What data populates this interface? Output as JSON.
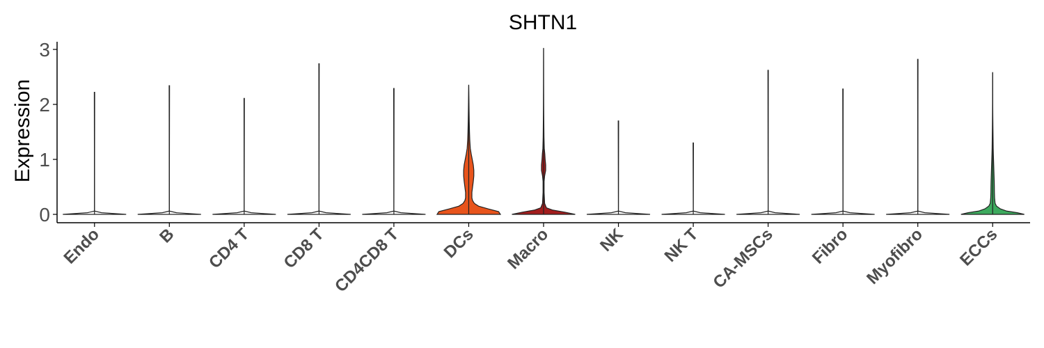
{
  "chart_data": {
    "type": "violin",
    "title": "SHTN1",
    "xlabel": "",
    "ylabel": "Expression",
    "ylim": [
      -0.15,
      3.15
    ],
    "yticks": [
      "0",
      "1",
      "2",
      "3"
    ],
    "categories": [
      "Endo",
      "B",
      "CD4 T",
      "CD8 T",
      "CD4CD8 T",
      "DCs",
      "Macro",
      "NK",
      "NK T",
      "CA-MSCs",
      "Fibro",
      "Myofibro",
      "ECCs"
    ],
    "max_values": [
      2.22,
      2.34,
      2.11,
      2.74,
      2.29,
      2.35,
      3.02,
      1.7,
      1.3,
      2.62,
      2.28,
      2.82,
      2.58
    ],
    "colors": [
      "#ffffff",
      "#ffffff",
      "#ffffff",
      "#ffffff",
      "#ffffff",
      "#e8541c",
      "#a31d1d",
      "#ffffff",
      "#ffffff",
      "#ffffff",
      "#ffffff",
      "#ffffff",
      "#3daa5e"
    ],
    "density_profiles": [
      {
        "y": [
          0,
          0.03,
          0.06
        ],
        "w": [
          0.9,
          0.2,
          0.0
        ]
      },
      {
        "y": [
          0,
          0.03,
          0.06
        ],
        "w": [
          0.9,
          0.2,
          0.0
        ]
      },
      {
        "y": [
          0,
          0.03,
          0.06
        ],
        "w": [
          0.9,
          0.2,
          0.0
        ]
      },
      {
        "y": [
          0,
          0.03,
          0.06
        ],
        "w": [
          0.9,
          0.2,
          0.0
        ]
      },
      {
        "y": [
          0,
          0.03,
          0.06
        ],
        "w": [
          0.9,
          0.2,
          0.0
        ]
      },
      {
        "y": [
          0,
          0.05,
          0.1,
          0.15,
          0.2,
          0.25,
          0.3,
          0.4,
          0.5,
          0.6,
          0.7,
          0.8,
          0.9,
          1.0,
          1.1,
          1.2,
          1.35,
          1.5,
          1.7,
          1.9,
          2.1,
          2.35
        ],
        "w": [
          0.9,
          0.85,
          0.55,
          0.28,
          0.16,
          0.11,
          0.09,
          0.09,
          0.11,
          0.13,
          0.145,
          0.145,
          0.13,
          0.1,
          0.07,
          0.045,
          0.03,
          0.022,
          0.015,
          0.01,
          0.006,
          0.0
        ]
      },
      {
        "y": [
          0,
          0.04,
          0.08,
          0.12,
          0.2,
          0.4,
          0.6,
          0.7,
          0.8,
          0.9,
          1.0,
          1.1,
          1.2,
          1.4,
          1.6,
          1.8,
          2.0,
          2.4,
          2.8,
          3.02
        ],
        "w": [
          0.9,
          0.6,
          0.25,
          0.08,
          0.03,
          0.015,
          0.015,
          0.03,
          0.06,
          0.06,
          0.045,
          0.035,
          0.02,
          0.012,
          0.009,
          0.006,
          0.004,
          0.002,
          0.001,
          0.0
        ]
      },
      {
        "y": [
          0,
          0.03,
          0.06
        ],
        "w": [
          0.9,
          0.2,
          0.0
        ]
      },
      {
        "y": [
          0,
          0.03,
          0.06
        ],
        "w": [
          0.9,
          0.2,
          0.0
        ]
      },
      {
        "y": [
          0,
          0.03,
          0.06
        ],
        "w": [
          0.9,
          0.2,
          0.0
        ]
      },
      {
        "y": [
          0,
          0.03,
          0.06
        ],
        "w": [
          0.9,
          0.2,
          0.0
        ]
      },
      {
        "y": [
          0,
          0.03,
          0.06
        ],
        "w": [
          0.9,
          0.2,
          0.0
        ]
      },
      {
        "y": [
          0,
          0.03,
          0.06,
          0.1,
          0.15,
          0.2,
          0.3,
          0.4,
          0.5,
          0.6,
          0.7,
          0.8,
          0.9,
          1.0,
          1.1,
          1.2,
          1.4,
          1.6,
          1.8,
          2.0,
          2.3,
          2.58
        ],
        "w": [
          0.9,
          0.7,
          0.4,
          0.22,
          0.11,
          0.07,
          0.055,
          0.05,
          0.048,
          0.045,
          0.04,
          0.035,
          0.03,
          0.025,
          0.02,
          0.016,
          0.012,
          0.008,
          0.005,
          0.003,
          0.0015,
          0.0
        ]
      }
    ]
  }
}
